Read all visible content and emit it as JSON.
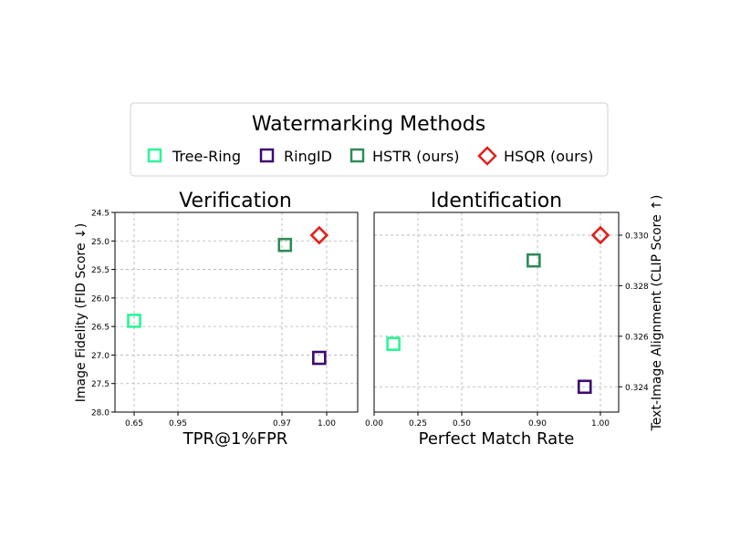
{
  "legend": {
    "title": "Watermarking Methods",
    "items": [
      {
        "label": "Tree-Ring",
        "color": "#2af598",
        "marker": "square"
      },
      {
        "label": "RingID",
        "color": "#3d0a6e",
        "marker": "square"
      },
      {
        "label": "HSTR (ours)",
        "color": "#2e8b57",
        "marker": "square"
      },
      {
        "label": "HSQR (ours)",
        "color": "#e0201b",
        "marker": "diamond"
      }
    ]
  },
  "chart_data": [
    {
      "type": "scatter",
      "title": "Verification",
      "xlabel": "TPR@1%FPR",
      "ylabel": "Image Fidelity (FID Score ↓)",
      "x_ticks": [
        "0.65",
        "0.95",
        "0.97",
        "1.00"
      ],
      "y_ticks": [
        "24.5",
        "25.0",
        "25.5",
        "26.0",
        "26.5",
        "27.0",
        "27.5",
        "28.0"
      ],
      "ylim": [
        24.5,
        28.0
      ],
      "y_inverted": true,
      "grid": true,
      "points": [
        {
          "series": "Tree-Ring",
          "x": 0.65,
          "y": 26.4
        },
        {
          "series": "RingID",
          "x": 0.995,
          "y": 27.05
        },
        {
          "series": "HSTR (ours)",
          "x": 0.972,
          "y": 25.07
        },
        {
          "series": "HSQR (ours)",
          "x": 0.995,
          "y": 24.9
        }
      ]
    },
    {
      "type": "scatter",
      "title": "Identification",
      "xlabel": "Perfect Match Rate",
      "ylabel": "Text-Image Alignment (CLIP Score ↑)",
      "x_ticks": [
        "0.00",
        "0.25",
        "0.50",
        "0.90",
        "1.00"
      ],
      "y_ticks": [
        "0.324",
        "0.326",
        "0.328",
        "0.330"
      ],
      "ylim": [
        0.323,
        0.3309
      ],
      "grid": true,
      "points": [
        {
          "series": "Tree-Ring",
          "x": 0.11,
          "y": 0.3257
        },
        {
          "series": "RingID",
          "x": 0.975,
          "y": 0.324
        },
        {
          "series": "HSTR (ours)",
          "x": 0.88,
          "y": 0.329
        },
        {
          "series": "HSQR (ours)",
          "x": 1.0,
          "y": 0.33
        }
      ]
    }
  ]
}
